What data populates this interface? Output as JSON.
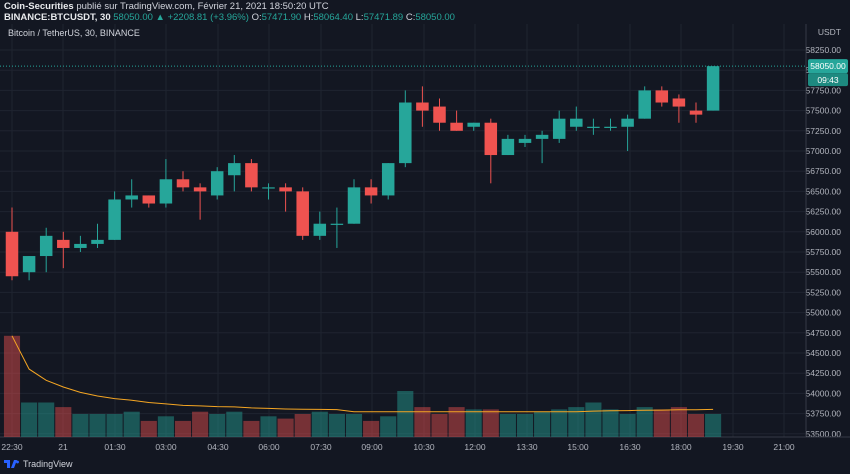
{
  "header": {
    "publisher": "Coin-Securities",
    "published_text": "publié sur TradingView.com, Février 21, 2021 18:50:20 UTC",
    "symbol_line": "BINANCE:BTCUSDT, 30",
    "last": "58050.00",
    "change": "▲ +2208.81 (+3.96%)",
    "o_label": "O:",
    "o_val": "57471.90",
    "h_label": "H:",
    "h_val": "58064.40",
    "l_label": "L:",
    "l_val": "57471.89",
    "c_label": "C:",
    "c_val": "58050.00"
  },
  "legend": {
    "title": "Bitcoin / TetherUS, 30, BINANCE"
  },
  "price_axis": {
    "unit": "USDT",
    "ticks": [
      "58250.00",
      "58000.00",
      "57750.00",
      "57500.00",
      "57250.00",
      "57000.00",
      "56750.00",
      "56500.00",
      "56250.00",
      "56000.00",
      "55750.00",
      "55500.00",
      "55250.00",
      "55000.00",
      "54750.00",
      "54500.00",
      "54250.00",
      "54000.00",
      "53750.00",
      "53500.00"
    ],
    "current_price": "58050.00",
    "countdown": "09:43"
  },
  "time_axis": {
    "ticks": [
      "22:30",
      "21",
      "01:30",
      "03:00",
      "04:30",
      "06:00",
      "07:30",
      "09:00",
      "10:30",
      "12:00",
      "13:30",
      "15:00",
      "16:30",
      "18:00",
      "19:30",
      "21:00"
    ]
  },
  "colors": {
    "up": "#26a69a",
    "down": "#ef5350",
    "background": "#131722",
    "ma": "#f5a623"
  },
  "footer": {
    "brand": "TradingView"
  },
  "chart_data": {
    "type": "candlestick",
    "title": "Bitcoin / TetherUS, 30, BINANCE",
    "xlabel": "",
    "ylabel": "USDT",
    "ylim": [
      53400,
      58450
    ],
    "x_ticks": [
      "22:30",
      "21",
      "01:30",
      "03:00",
      "04:30",
      "06:00",
      "07:30",
      "09:00",
      "10:30",
      "12:00",
      "13:30",
      "15:00",
      "16:30",
      "18:00",
      "19:30",
      "21:00"
    ],
    "candles": [
      {
        "o": 56000,
        "h": 56300,
        "l": 55400,
        "c": 55450
      },
      {
        "o": 55500,
        "h": 55700,
        "l": 55400,
        "c": 55700
      },
      {
        "o": 55700,
        "h": 56050,
        "l": 55500,
        "c": 55950
      },
      {
        "o": 55900,
        "h": 56000,
        "l": 55550,
        "c": 55800
      },
      {
        "o": 55800,
        "h": 55950,
        "l": 55750,
        "c": 55850
      },
      {
        "o": 55850,
        "h": 56100,
        "l": 55800,
        "c": 55900
      },
      {
        "o": 55900,
        "h": 56500,
        "l": 55900,
        "c": 56400
      },
      {
        "o": 56400,
        "h": 56650,
        "l": 56300,
        "c": 56450
      },
      {
        "o": 56450,
        "h": 56450,
        "l": 56300,
        "c": 56350
      },
      {
        "o": 56350,
        "h": 56900,
        "l": 56300,
        "c": 56650
      },
      {
        "o": 56650,
        "h": 56750,
        "l": 56500,
        "c": 56550
      },
      {
        "o": 56550,
        "h": 56600,
        "l": 56150,
        "c": 56500
      },
      {
        "o": 56450,
        "h": 56800,
        "l": 56400,
        "c": 56750
      },
      {
        "o": 56700,
        "h": 56950,
        "l": 56500,
        "c": 56850
      },
      {
        "o": 56850,
        "h": 56900,
        "l": 56500,
        "c": 56550
      },
      {
        "o": 56550,
        "h": 56600,
        "l": 56400,
        "c": 56550
      },
      {
        "o": 56550,
        "h": 56600,
        "l": 56250,
        "c": 56500
      },
      {
        "o": 56500,
        "h": 56550,
        "l": 55900,
        "c": 55950
      },
      {
        "o": 55950,
        "h": 56250,
        "l": 55900,
        "c": 56100
      },
      {
        "o": 56100,
        "h": 56300,
        "l": 55800,
        "c": 56100
      },
      {
        "o": 56100,
        "h": 56650,
        "l": 56100,
        "c": 56550
      },
      {
        "o": 56550,
        "h": 56650,
        "l": 56350,
        "c": 56450
      },
      {
        "o": 56450,
        "h": 56850,
        "l": 56400,
        "c": 56850
      },
      {
        "o": 56850,
        "h": 57750,
        "l": 56800,
        "c": 57600
      },
      {
        "o": 57600,
        "h": 57800,
        "l": 57300,
        "c": 57500
      },
      {
        "o": 57550,
        "h": 57650,
        "l": 57250,
        "c": 57350
      },
      {
        "o": 57350,
        "h": 57500,
        "l": 57250,
        "c": 57250
      },
      {
        "o": 57300,
        "h": 57350,
        "l": 57250,
        "c": 57350
      },
      {
        "o": 57350,
        "h": 57400,
        "l": 56600,
        "c": 56950
      },
      {
        "o": 56950,
        "h": 57200,
        "l": 56950,
        "c": 57150
      },
      {
        "o": 57100,
        "h": 57200,
        "l": 57050,
        "c": 57150
      },
      {
        "o": 57150,
        "h": 57250,
        "l": 56850,
        "c": 57200
      },
      {
        "o": 57150,
        "h": 57500,
        "l": 57100,
        "c": 57400
      },
      {
        "o": 57300,
        "h": 57550,
        "l": 57250,
        "c": 57400
      },
      {
        "o": 57300,
        "h": 57400,
        "l": 57200,
        "c": 57300
      },
      {
        "o": 57300,
        "h": 57400,
        "l": 57250,
        "c": 57300
      },
      {
        "o": 57300,
        "h": 57450,
        "l": 57000,
        "c": 57400
      },
      {
        "o": 57400,
        "h": 57800,
        "l": 57400,
        "c": 57750
      },
      {
        "o": 57750,
        "h": 57800,
        "l": 57550,
        "c": 57600
      },
      {
        "o": 57650,
        "h": 57700,
        "l": 57350,
        "c": 57550
      },
      {
        "o": 57500,
        "h": 57600,
        "l": 57350,
        "c": 57450
      },
      {
        "o": 57500,
        "h": 58050,
        "l": 57500,
        "c": 58050
      }
    ],
    "volume_scale": "relative",
    "volumes": [
      4.4,
      1.5,
      1.5,
      1.3,
      1.0,
      1.0,
      1.0,
      1.1,
      0.7,
      0.9,
      0.7,
      1.1,
      1.0,
      1.1,
      0.7,
      0.9,
      0.8,
      1.0,
      1.1,
      1.0,
      1.0,
      0.7,
      0.9,
      2.0,
      1.3,
      1.0,
      1.3,
      1.2,
      1.2,
      1.0,
      1.0,
      1.1,
      1.2,
      1.3,
      1.5,
      1.2,
      1.0,
      1.3,
      1.2,
      1.3,
      1.0,
      1.0
    ]
  }
}
